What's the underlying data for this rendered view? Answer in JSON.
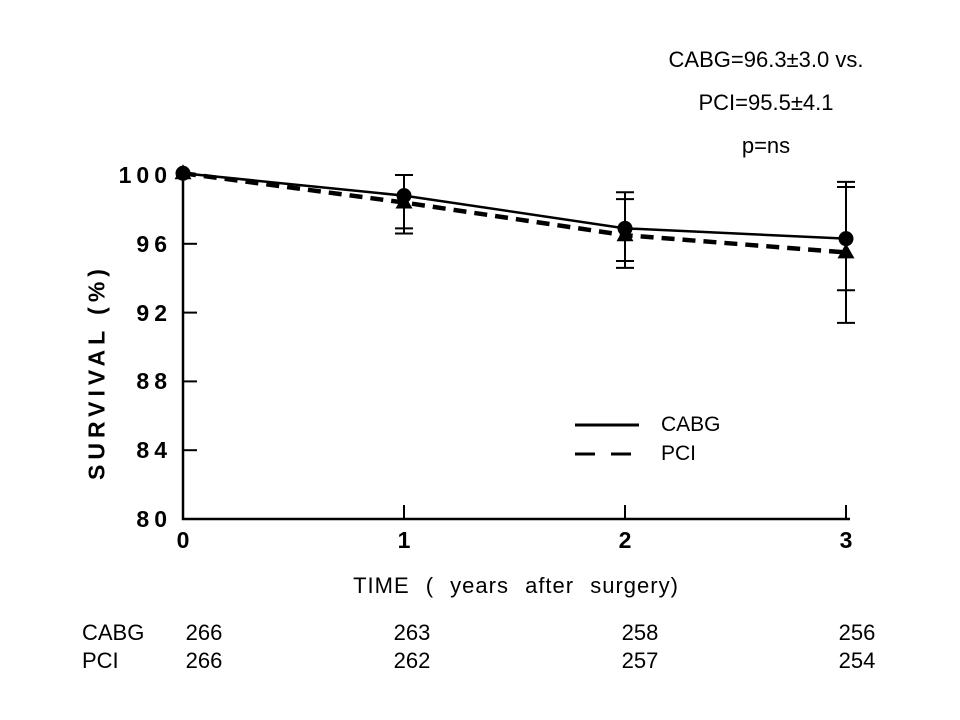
{
  "page": {
    "background": "#ffffff",
    "ink": "#000000"
  },
  "chart_data": {
    "type": "line",
    "title": "",
    "xlabel": "TIME ( years after surgery)",
    "ylabel": "SURVIVAL (%)",
    "x": [
      0,
      1,
      2,
      3
    ],
    "xticks": [
      "0",
      "1",
      "2",
      "3"
    ],
    "ytick_values": [
      100,
      96,
      92,
      88,
      84,
      80
    ],
    "yticks": [
      "100",
      "96",
      "92",
      "88",
      "84",
      "80"
    ],
    "xlim": [
      0,
      3
    ],
    "ylim": [
      80,
      100
    ],
    "grid": false,
    "legend_position": "inside-right",
    "annotations": [
      "CABG=96.3±3.0 vs.",
      "PCI=95.5±4.1",
      "p=ns"
    ],
    "series": [
      {
        "name": "CABG",
        "line_style": "solid",
        "marker": "circle",
        "values": [
          100.1,
          98.8,
          96.9,
          96.3
        ],
        "err_lo": [
          null,
          96.9,
          95.0,
          93.3
        ],
        "err_hi": [
          null,
          100.0,
          99.0,
          99.3
        ],
        "summary": "96.3±3.0"
      },
      {
        "name": "PCI",
        "line_style": "dashed",
        "marker": "triangle",
        "values": [
          100.1,
          98.4,
          96.5,
          95.5
        ],
        "err_lo": [
          null,
          96.6,
          94.6,
          91.4
        ],
        "err_hi": [
          null,
          100.0,
          98.6,
          99.6
        ],
        "summary": "95.5±4.1"
      }
    ],
    "p_value": "p=ns"
  },
  "risk_table": {
    "rows": [
      {
        "label": "CABG",
        "values": [
          "266",
          "263",
          "258",
          "256"
        ]
      },
      {
        "label": "PCI",
        "values": [
          "266",
          "262",
          "257",
          "254"
        ]
      }
    ]
  }
}
